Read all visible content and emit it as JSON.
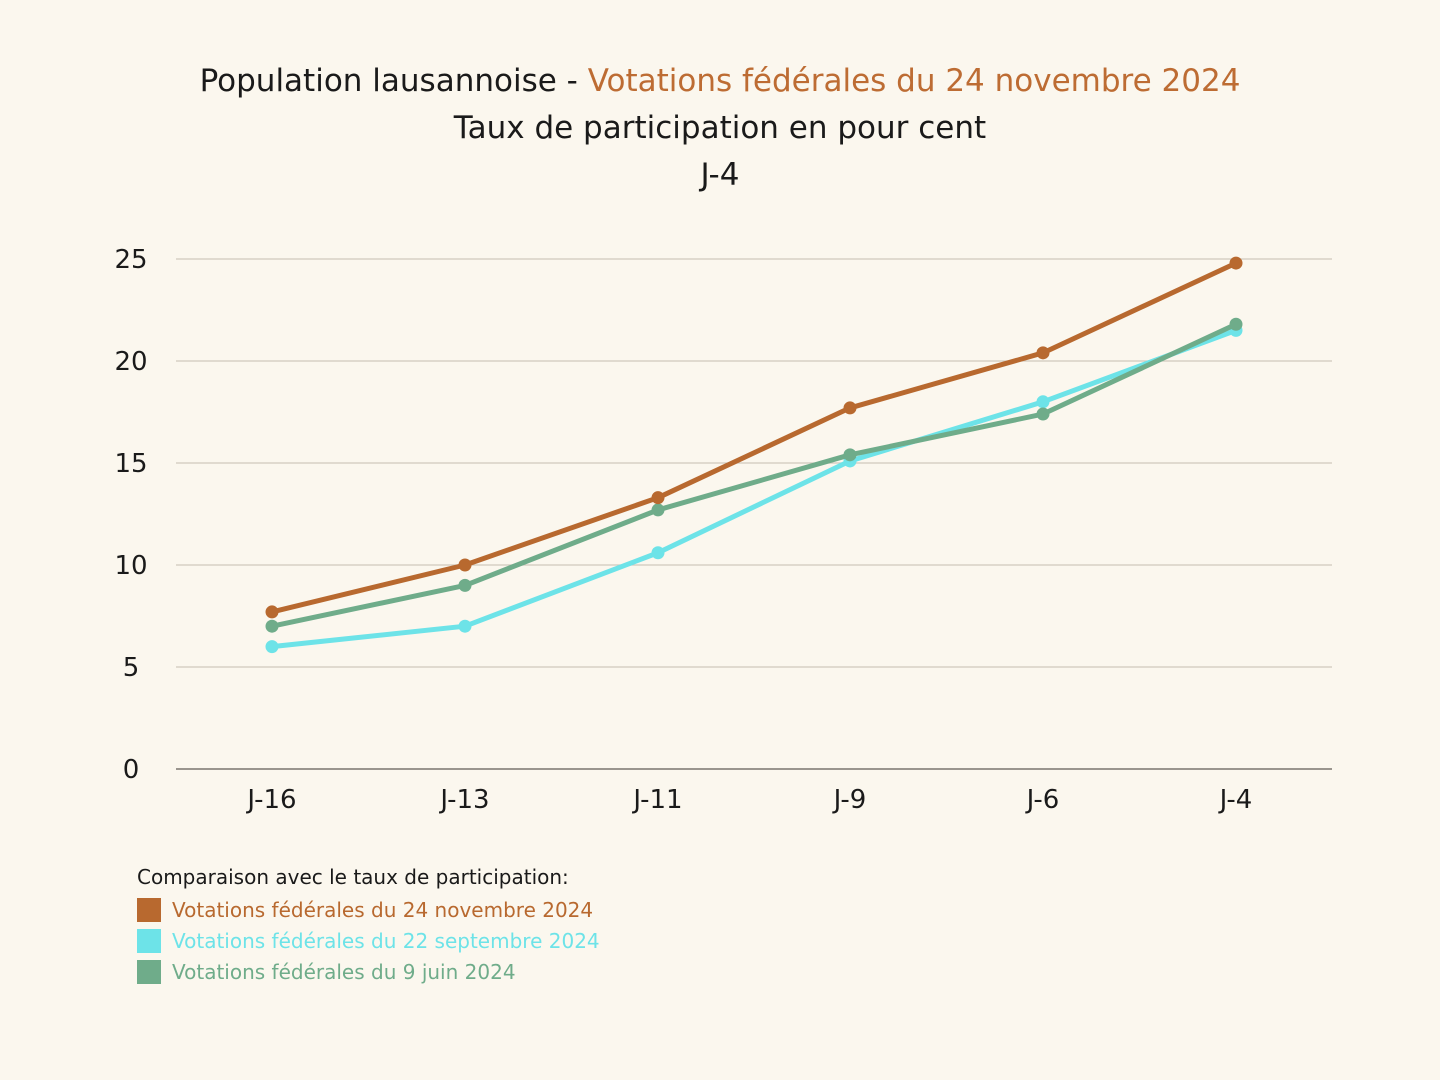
{
  "title": {
    "prefix": "Population lausannoise - ",
    "highlight": "Votations fédérales du 24 novembre 2024",
    "subtitle": "Taux de participation en pour cent",
    "day": "J-4"
  },
  "colors": {
    "nov": "#b8692f",
    "sep": "#6de3e8",
    "jun": "#6fac8a",
    "grid": "#cfc8bd",
    "axis": "#9a958e"
  },
  "legend": {
    "title": "Comparaison avec le taux de participation:",
    "items": [
      {
        "label": "Votations fédérales du 24 novembre 2024",
        "color": "#b8692f"
      },
      {
        "label": "Votations fédérales du 22 septembre 2024",
        "color": "#6de3e8"
      },
      {
        "label": "Votations fédérales du 9 juin 2024",
        "color": "#6fac8a"
      }
    ]
  },
  "chart_data": {
    "type": "line",
    "title": "Population lausannoise - Votations fédérales du 24 novembre 2024",
    "subtitle": "Taux de participation en pour cent — J-4",
    "xlabel": "",
    "ylabel": "",
    "categories": [
      "J-16",
      "J-13",
      "J-11",
      "J-9",
      "J-6",
      "J-4"
    ],
    "yticks": [
      0,
      5,
      10,
      15,
      20,
      25
    ],
    "ylim": [
      0,
      25
    ],
    "grid": true,
    "legend_position": "bottom-left",
    "series": [
      {
        "name": "Votations fédérales du 24 novembre 2024",
        "color": "#b8692f",
        "values": [
          7.7,
          10.0,
          13.3,
          17.7,
          20.4,
          24.8
        ]
      },
      {
        "name": "Votations fédérales du 22 septembre 2024",
        "color": "#6de3e8",
        "values": [
          6.0,
          7.0,
          10.6,
          15.1,
          18.0,
          21.5
        ]
      },
      {
        "name": "Votations fédérales du 9 juin 2024",
        "color": "#6fac8a",
        "values": [
          7.0,
          9.0,
          12.7,
          15.4,
          17.4,
          21.8
        ]
      }
    ]
  }
}
